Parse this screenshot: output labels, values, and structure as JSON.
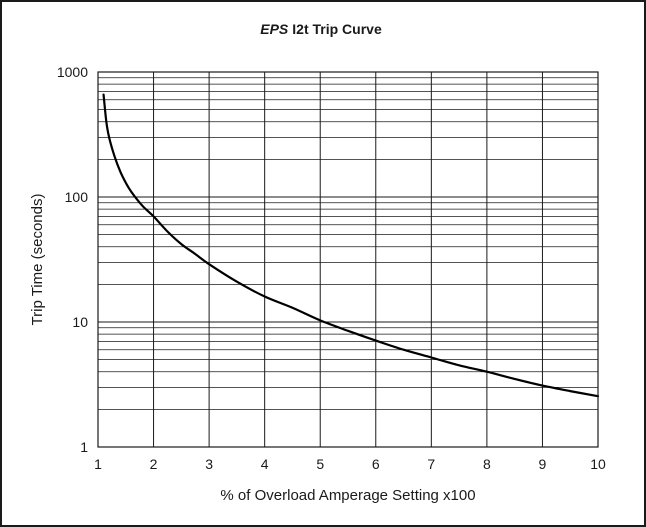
{
  "chart_data": {
    "type": "line",
    "title_brand": "EPS",
    "title_rest": "I2t Trip Curve",
    "xlabel": "% of Overload Amperage Setting x100",
    "ylabel": "Trip Time (seconds)",
    "xlim": [
      1,
      10
    ],
    "ylim": [
      1,
      1000
    ],
    "y_scale": "log",
    "x_ticks": [
      1,
      2,
      3,
      4,
      5,
      6,
      7,
      8,
      9,
      10
    ],
    "x_tick_labels": [
      "1",
      "2",
      "3",
      "4",
      "5",
      "6",
      "7",
      "8",
      "9",
      "10"
    ],
    "y_ticks": [
      1,
      10,
      100,
      1000
    ],
    "y_tick_labels": [
      "1",
      "10",
      "100",
      "1000"
    ],
    "grid": true,
    "legend": "none",
    "line_color": "#000000",
    "series": [
      {
        "x": [
          1.1,
          1.15,
          1.2,
          1.3,
          1.4,
          1.5,
          1.6,
          1.8,
          2,
          2.25,
          2.5,
          2.75,
          3,
          3.5,
          4,
          4.5,
          5,
          5.5,
          6,
          6.5,
          7,
          7.5,
          8,
          8.5,
          9,
          9.5,
          10
        ],
        "y": [
          660,
          400,
          300,
          210,
          160,
          130,
          110,
          85,
          70,
          53,
          42,
          35,
          29,
          21,
          16,
          13,
          10.3,
          8.5,
          7.1,
          6,
          5.2,
          4.5,
          4,
          3.5,
          3.1,
          2.8,
          2.55
        ]
      }
    ]
  }
}
